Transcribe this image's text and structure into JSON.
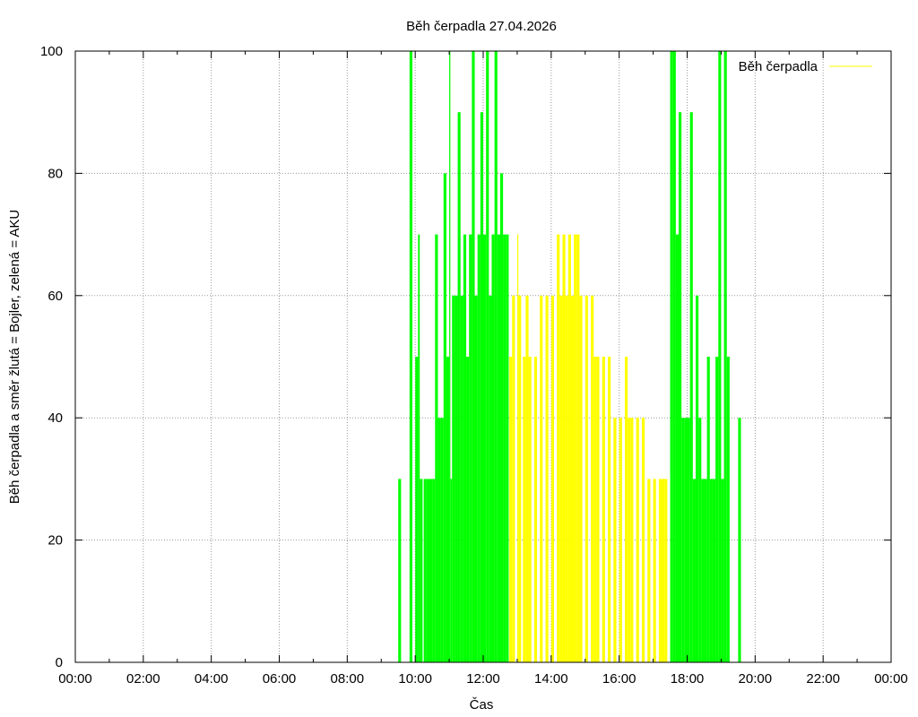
{
  "chart_data": {
    "type": "bar",
    "title": "Běh čerpadla 27.04.2026",
    "xlabel": "Čas",
    "ylabel": "Běh čerpadla a směr žlutá = Bojler, zelená = AKU",
    "xlim": [
      "00:00",
      "24:00"
    ],
    "ylim": [
      0,
      100
    ],
    "grid": true,
    "legend_position": "top-right",
    "x_tick_labels": [
      "00:00",
      "02:00",
      "04:00",
      "06:00",
      "08:00",
      "10:00",
      "12:00",
      "14:00",
      "16:00",
      "18:00",
      "20:00",
      "22:00",
      "00:00"
    ],
    "y_tick_labels": [
      "0",
      "20",
      "40",
      "60",
      "80",
      "100"
    ],
    "colors": {
      "bojler": "#ffff00",
      "aku": "#00ff00",
      "grid": "#999999"
    },
    "series": [
      {
        "name": "Běh čerpadla",
        "direction": "bojler",
        "color": "#ffff00",
        "points": [
          [
            "12:46",
            50
          ],
          [
            "12:51",
            60
          ],
          [
            "13:00",
            70
          ],
          [
            "13:02",
            60
          ],
          [
            "13:10",
            50
          ],
          [
            "13:15",
            60
          ],
          [
            "13:20",
            50
          ],
          [
            "13:30",
            50
          ],
          [
            "13:40",
            60
          ],
          [
            "13:50",
            60
          ],
          [
            "14:00",
            60
          ],
          [
            "14:10",
            70
          ],
          [
            "14:15",
            60
          ],
          [
            "14:20",
            70
          ],
          [
            "14:25",
            60
          ],
          [
            "14:30",
            70
          ],
          [
            "14:35",
            60
          ],
          [
            "14:40",
            70
          ],
          [
            "14:45",
            70
          ],
          [
            "14:50",
            60
          ],
          [
            "15:00",
            60
          ],
          [
            "15:10",
            60
          ],
          [
            "15:15",
            50
          ],
          [
            "15:20",
            50
          ],
          [
            "15:30",
            50
          ],
          [
            "15:40",
            50
          ],
          [
            "15:50",
            40
          ],
          [
            "16:00",
            40
          ],
          [
            "16:10",
            50
          ],
          [
            "16:15",
            40
          ],
          [
            "16:20",
            40
          ],
          [
            "16:30",
            40
          ],
          [
            "16:40",
            40
          ],
          [
            "16:50",
            30
          ],
          [
            "17:00",
            30
          ],
          [
            "17:10",
            30
          ],
          [
            "17:15",
            30
          ],
          [
            "17:20",
            30
          ]
        ]
      },
      {
        "direction": "aku",
        "color": "#00ff00",
        "points": [
          [
            "09:30",
            30
          ],
          [
            "09:50",
            100
          ],
          [
            "10:00",
            50
          ],
          [
            "10:05",
            70
          ],
          [
            "10:08",
            30
          ],
          [
            "10:15",
            30
          ],
          [
            "10:20",
            30
          ],
          [
            "10:25",
            30
          ],
          [
            "10:30",
            30
          ],
          [
            "10:35",
            70
          ],
          [
            "10:40",
            40
          ],
          [
            "10:45",
            40
          ],
          [
            "10:50",
            80
          ],
          [
            "10:55",
            50
          ],
          [
            "11:00",
            100
          ],
          [
            "11:02",
            30
          ],
          [
            "11:05",
            60
          ],
          [
            "11:10",
            60
          ],
          [
            "11:15",
            90
          ],
          [
            "11:20",
            60
          ],
          [
            "11:25",
            70
          ],
          [
            "11:30",
            50
          ],
          [
            "11:35",
            70
          ],
          [
            "11:40",
            100
          ],
          [
            "11:45",
            60
          ],
          [
            "11:50",
            70
          ],
          [
            "11:55",
            90
          ],
          [
            "12:00",
            70
          ],
          [
            "12:05",
            100
          ],
          [
            "12:10",
            60
          ],
          [
            "12:15",
            70
          ],
          [
            "12:20",
            100
          ],
          [
            "12:25",
            70
          ],
          [
            "12:30",
            80
          ],
          [
            "12:35",
            70
          ],
          [
            "12:40",
            70
          ],
          [
            "17:30",
            100
          ],
          [
            "17:35",
            100
          ],
          [
            "17:40",
            70
          ],
          [
            "17:45",
            90
          ],
          [
            "17:50",
            40
          ],
          [
            "17:55",
            40
          ],
          [
            "18:00",
            40
          ],
          [
            "18:05",
            90
          ],
          [
            "18:10",
            30
          ],
          [
            "18:15",
            60
          ],
          [
            "18:20",
            40
          ],
          [
            "18:25",
            30
          ],
          [
            "18:30",
            30
          ],
          [
            "18:35",
            50
          ],
          [
            "18:40",
            30
          ],
          [
            "18:45",
            30
          ],
          [
            "18:50",
            50
          ],
          [
            "18:55",
            100
          ],
          [
            "19:00",
            30
          ],
          [
            "19:05",
            100
          ],
          [
            "19:10",
            50
          ],
          [
            "19:30",
            40
          ]
        ]
      }
    ]
  }
}
